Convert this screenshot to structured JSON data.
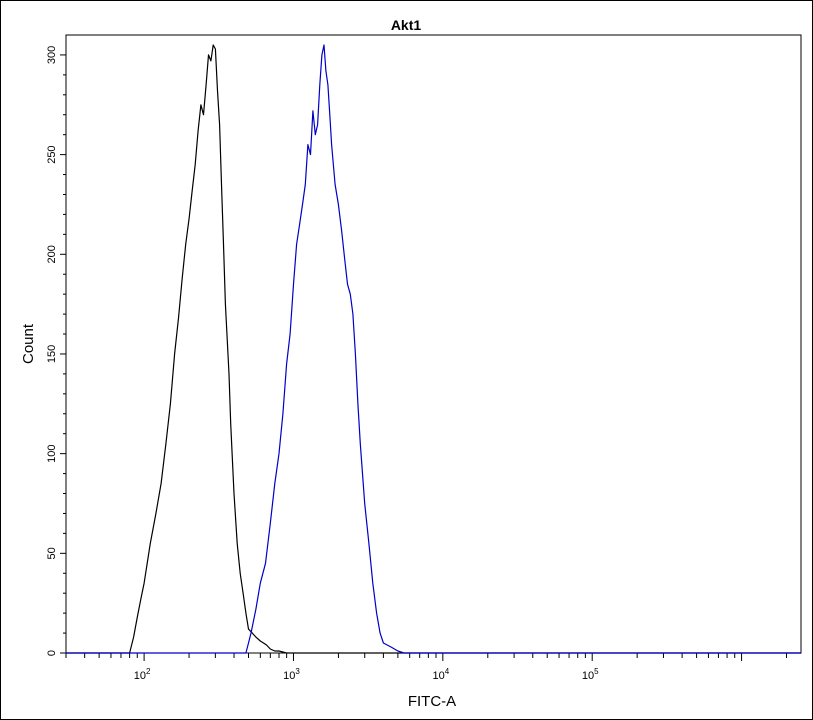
{
  "chart_data": {
    "type": "line",
    "title": "Akt1",
    "xlabel": "FITC-A",
    "ylabel": "Count",
    "x_scale": "log",
    "xlim": [
      30,
      2500000
    ],
    "ylim": [
      0,
      310
    ],
    "x_major_ticks": [
      {
        "value": 100,
        "base": "10",
        "exp": "2"
      },
      {
        "value": 1000,
        "base": "10",
        "exp": "3"
      },
      {
        "value": 10000,
        "base": "10",
        "exp": "4"
      },
      {
        "value": 100000,
        "base": "10",
        "exp": "5"
      }
    ],
    "y_major_ticks": [
      {
        "value": 0,
        "label": "0"
      },
      {
        "value": 50,
        "label": "50"
      },
      {
        "value": 100,
        "label": "100"
      },
      {
        "value": 150,
        "label": "150"
      },
      {
        "value": 200,
        "label": "200"
      },
      {
        "value": 250,
        "label": "250"
      },
      {
        "value": 300,
        "label": "300"
      }
    ],
    "grid": false,
    "legend": "none",
    "series": [
      {
        "color": "#000000",
        "x": [
          30,
          80,
          85,
          90,
          95,
          100,
          110,
          120,
          130,
          140,
          150,
          160,
          170,
          180,
          190,
          200,
          210,
          220,
          230,
          240,
          250,
          260,
          270,
          280,
          290,
          300,
          310,
          320,
          330,
          340,
          350,
          370,
          380,
          400,
          420,
          440,
          460,
          480,
          500,
          530,
          560,
          600,
          630,
          660,
          700,
          750,
          800,
          900,
          1000,
          2500000
        ],
        "y": [
          0,
          0,
          8,
          18,
          27,
          35,
          55,
          70,
          85,
          105,
          125,
          150,
          168,
          188,
          205,
          218,
          232,
          245,
          262,
          275,
          270,
          285,
          300,
          297,
          305,
          303,
          282,
          265,
          235,
          205,
          175,
          140,
          115,
          80,
          55,
          40,
          30,
          20,
          12,
          10,
          8,
          6,
          5,
          4,
          2,
          1,
          1,
          0,
          0,
          0
        ]
      },
      {
        "color": "#0000c8",
        "x": [
          30,
          480,
          500,
          520,
          560,
          600,
          650,
          700,
          750,
          800,
          850,
          900,
          950,
          1000,
          1050,
          1100,
          1150,
          1200,
          1250,
          1300,
          1350,
          1400,
          1450,
          1500,
          1550,
          1600,
          1650,
          1700,
          1750,
          1800,
          1900,
          2000,
          2100,
          2200,
          2300,
          2400,
          2500,
          2600,
          2700,
          2800,
          2900,
          3000,
          3200,
          3400,
          3600,
          3800,
          4000,
          4500,
          5000,
          5500,
          2500000
        ],
        "y": [
          0,
          0,
          5,
          10,
          22,
          35,
          45,
          65,
          85,
          100,
          120,
          145,
          160,
          185,
          205,
          215,
          225,
          235,
          255,
          250,
          272,
          260,
          265,
          285,
          300,
          305,
          292,
          285,
          270,
          255,
          235,
          225,
          212,
          198,
          185,
          180,
          170,
          150,
          125,
          105,
          90,
          75,
          55,
          35,
          20,
          10,
          5,
          3,
          1,
          0,
          0
        ]
      }
    ]
  }
}
